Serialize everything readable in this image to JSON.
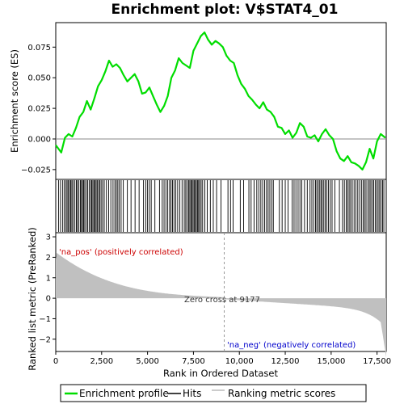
{
  "chart_data": {
    "type": "line",
    "title": "Enrichment plot: V$STAT4_01",
    "xlabel": "Rank in Ordered Dataset",
    "ylabel_top": "Enrichment score (ES)",
    "ylabel_bottom": "Ranked list metric (PreRanked)",
    "x_range": [
      0,
      18000
    ],
    "x_ticks": [
      0,
      2500,
      5000,
      7500,
      10000,
      12500,
      15000,
      17500
    ],
    "x_tick_labels": [
      "0",
      "2,500",
      "5,000",
      "7,500",
      "10,000",
      "12,500",
      "15,000",
      "17,500"
    ],
    "es_range": [
      -0.033,
      0.095
    ],
    "es_ticks": [
      -0.025,
      0.0,
      0.025,
      0.05,
      0.075
    ],
    "es_tick_labels": [
      "−0.025",
      "0.000",
      "0.025",
      "0.050",
      "0.075"
    ],
    "metric_range": [
      -2.6,
      3.2
    ],
    "metric_ticks": [
      -2,
      -1,
      0,
      1,
      2,
      3
    ],
    "metric_tick_labels": [
      "−2",
      "−1",
      "0",
      "1",
      "2",
      "3"
    ],
    "zero_cross_rank": 9177,
    "zero_cross_label": "Zero cross at 9177",
    "pos_label": "'na_pos' (positively correlated)",
    "neg_label": "'na_neg' (negatively correlated)",
    "series": [
      {
        "name": "Enrichment profile",
        "color": "#00dd00",
        "x": [
          0,
          300,
          500,
          700,
          900,
          1100,
          1300,
          1500,
          1700,
          1900,
          2100,
          2300,
          2500,
          2700,
          2900,
          3100,
          3300,
          3500,
          3700,
          3900,
          4100,
          4300,
          4500,
          4700,
          4900,
          5100,
          5300,
          5500,
          5700,
          5900,
          6100,
          6300,
          6500,
          6700,
          6900,
          7100,
          7300,
          7500,
          7700,
          7900,
          8100,
          8300,
          8500,
          8700,
          8900,
          9100,
          9300,
          9500,
          9700,
          9900,
          10100,
          10300,
          10500,
          10700,
          10900,
          11100,
          11300,
          11500,
          11700,
          11900,
          12100,
          12300,
          12500,
          12700,
          12900,
          13100,
          13300,
          13500,
          13700,
          13900,
          14100,
          14300,
          14500,
          14700,
          14900,
          15100,
          15300,
          15500,
          15700,
          15900,
          16100,
          16300,
          16500,
          16700,
          16900,
          17100,
          17300,
          17500,
          17700,
          17950
        ],
        "y": [
          -0.005,
          -0.011,
          0.001,
          0.004,
          0.002,
          0.009,
          0.018,
          0.022,
          0.031,
          0.024,
          0.033,
          0.043,
          0.048,
          0.055,
          0.064,
          0.059,
          0.061,
          0.058,
          0.052,
          0.047,
          0.05,
          0.053,
          0.047,
          0.037,
          0.038,
          0.042,
          0.035,
          0.028,
          0.022,
          0.027,
          0.035,
          0.05,
          0.056,
          0.066,
          0.062,
          0.06,
          0.058,
          0.072,
          0.078,
          0.084,
          0.087,
          0.081,
          0.077,
          0.08,
          0.078,
          0.075,
          0.068,
          0.064,
          0.062,
          0.052,
          0.045,
          0.041,
          0.035,
          0.032,
          0.028,
          0.025,
          0.03,
          0.024,
          0.022,
          0.018,
          0.01,
          0.009,
          0.004,
          0.007,
          0.001,
          0.005,
          0.013,
          0.01,
          0.002,
          0.001,
          0.003,
          -0.002,
          0.004,
          0.008,
          0.003,
          0.0,
          -0.01,
          -0.016,
          -0.018,
          -0.014,
          -0.019,
          -0.02,
          -0.022,
          -0.025,
          -0.019,
          -0.008,
          -0.016,
          -0.002,
          0.004,
          0.001
        ]
      }
    ],
    "legend": {
      "placement": "bottom",
      "entries": [
        {
          "label": "Enrichment profile",
          "color": "#00dd00"
        },
        {
          "label": "Hits",
          "color": "#000000"
        },
        {
          "label": "Ranking metric scores",
          "color": "#bbbbbb"
        }
      ]
    },
    "hit_ranks": [
      150,
      260,
      380,
      470,
      560,
      620,
      680,
      760,
      820,
      880,
      940,
      1040,
      1120,
      1180,
      1260,
      1340,
      1400,
      1460,
      1520,
      1580,
      1660,
      1740,
      1820,
      1900,
      1960,
      2020,
      2080,
      2140,
      2200,
      2260,
      2330,
      2400,
      2470,
      2550,
      2640,
      2760,
      2880,
      3000,
      3120,
      3220,
      3300,
      3380,
      3460,
      3560,
      3680,
      3900,
      4100,
      4320,
      4540,
      4780,
      4900,
      5000,
      5100,
      5200,
      5400,
      5650,
      5800,
      5900,
      6000,
      6100,
      6200,
      6280,
      6360,
      6440,
      6540,
      6640,
      6760,
      6880,
      7000,
      7080,
      7160,
      7240,
      7300,
      7360,
      7420,
      7480,
      7540,
      7600,
      7660,
      7720,
      7780,
      7840,
      7920,
      8000,
      8120,
      8250,
      8420,
      8580,
      8760,
      9000,
      9380,
      9520,
      9660,
      10050,
      10230,
      10520,
      10640,
      10800,
      10950,
      11060,
      11170,
      11270,
      11380,
      11480,
      11570,
      11660,
      11760,
      11850,
      12180,
      12330,
      12500,
      12650,
      12880,
      12980,
      13080,
      13200,
      13300,
      13400,
      13550,
      13700,
      13850,
      13950,
      14050,
      14150,
      14220,
      14300,
      14380,
      14450,
      14520,
      14600,
      14680,
      14760,
      14850,
      14950,
      15050,
      15200,
      15450,
      15620,
      15720,
      15820,
      15900,
      15980,
      16060,
      16150,
      16250,
      16350,
      16450,
      16550,
      16650,
      16740,
      16820,
      16900,
      17000,
      17080,
      17160,
      17240,
      17320,
      17400,
      17480,
      17560,
      17640,
      17720,
      17800,
      17870
    ]
  }
}
